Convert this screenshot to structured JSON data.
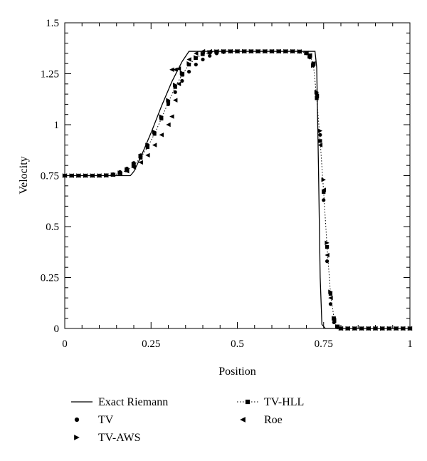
{
  "chart_data": {
    "type": "line",
    "xlabel": "Position",
    "ylabel": "Velocity",
    "xlim": [
      0,
      1
    ],
    "ylim": [
      0,
      1.5
    ],
    "x_ticks": [
      {
        "value": 0,
        "label": "0"
      },
      {
        "value": 0.25,
        "label": "0.25"
      },
      {
        "value": 0.5,
        "label": "0.5"
      },
      {
        "value": 0.75,
        "label": "0.75"
      },
      {
        "value": 1,
        "label": "1"
      }
    ],
    "y_ticks": [
      {
        "value": 0,
        "label": "0"
      },
      {
        "value": 0.25,
        "label": "0.25"
      },
      {
        "value": 0.5,
        "label": "0.5"
      },
      {
        "value": 0.75,
        "label": "0.75"
      },
      {
        "value": 1,
        "label": "1"
      },
      {
        "value": 1.25,
        "label": "1.25"
      },
      {
        "value": 1.5,
        "label": "1.5"
      }
    ],
    "grid": false,
    "legend_position": "bottom",
    "series": [
      {
        "name": "Exact Riemann",
        "style": "solid-line",
        "color": "#000000",
        "points": [
          [
            0,
            0.75
          ],
          [
            0.19,
            0.75
          ],
          [
            0.2,
            0.77
          ],
          [
            0.22,
            0.84
          ],
          [
            0.25,
            0.96
          ],
          [
            0.28,
            1.09
          ],
          [
            0.31,
            1.21
          ],
          [
            0.34,
            1.31
          ],
          [
            0.36,
            1.36
          ],
          [
            0.725,
            1.36
          ],
          [
            0.73,
            1.28
          ],
          [
            0.735,
            0.8
          ],
          [
            0.74,
            0.25
          ],
          [
            0.745,
            0.02
          ],
          [
            0.755,
            0.0
          ],
          [
            1,
            0.0
          ]
        ]
      },
      {
        "name": "TV",
        "style": "circle",
        "color": "#000000",
        "points": [
          [
            0.0,
            0.75
          ],
          [
            0.02,
            0.75
          ],
          [
            0.04,
            0.75
          ],
          [
            0.06,
            0.75
          ],
          [
            0.08,
            0.75
          ],
          [
            0.1,
            0.75
          ],
          [
            0.12,
            0.752
          ],
          [
            0.14,
            0.757
          ],
          [
            0.16,
            0.768
          ],
          [
            0.18,
            0.785
          ],
          [
            0.2,
            0.812
          ],
          [
            0.22,
            0.85
          ],
          [
            0.24,
            0.9
          ],
          [
            0.26,
            0.96
          ],
          [
            0.28,
            1.03
          ],
          [
            0.3,
            1.1
          ],
          [
            0.32,
            1.16
          ],
          [
            0.34,
            1.215
          ],
          [
            0.36,
            1.26
          ],
          [
            0.38,
            1.295
          ],
          [
            0.4,
            1.32
          ],
          [
            0.42,
            1.338
          ],
          [
            0.44,
            1.35
          ],
          [
            0.46,
            1.356
          ],
          [
            0.48,
            1.359
          ],
          [
            0.5,
            1.36
          ],
          [
            0.52,
            1.36
          ],
          [
            0.54,
            1.36
          ],
          [
            0.56,
            1.36
          ],
          [
            0.58,
            1.36
          ],
          [
            0.6,
            1.36
          ],
          [
            0.62,
            1.36
          ],
          [
            0.64,
            1.36
          ],
          [
            0.66,
            1.36
          ],
          [
            0.68,
            1.358
          ],
          [
            0.7,
            1.35
          ],
          [
            0.71,
            1.33
          ],
          [
            0.72,
            1.29
          ],
          [
            0.73,
            1.15
          ],
          [
            0.74,
            0.95
          ],
          [
            0.75,
            0.63
          ],
          [
            0.76,
            0.33
          ],
          [
            0.77,
            0.12
          ],
          [
            0.78,
            0.03
          ],
          [
            0.79,
            0.005
          ],
          [
            0.8,
            0.0
          ],
          [
            0.82,
            0.0
          ],
          [
            0.84,
            0.0
          ],
          [
            0.86,
            0.0
          ],
          [
            0.88,
            0.0
          ],
          [
            0.9,
            0.0
          ],
          [
            0.92,
            0.0
          ],
          [
            0.94,
            0.0
          ],
          [
            0.96,
            0.0
          ],
          [
            0.98,
            0.0
          ],
          [
            1.0,
            0.0
          ]
        ]
      },
      {
        "name": "TV-HLL",
        "style": "dotted-square",
        "color": "#000000",
        "points": [
          [
            0.0,
            0.75
          ],
          [
            0.02,
            0.75
          ],
          [
            0.04,
            0.75
          ],
          [
            0.06,
            0.75
          ],
          [
            0.08,
            0.75
          ],
          [
            0.1,
            0.75
          ],
          [
            0.12,
            0.751
          ],
          [
            0.14,
            0.754
          ],
          [
            0.16,
            0.762
          ],
          [
            0.18,
            0.776
          ],
          [
            0.2,
            0.8
          ],
          [
            0.22,
            0.838
          ],
          [
            0.24,
            0.89
          ],
          [
            0.26,
            0.955
          ],
          [
            0.28,
            1.03
          ],
          [
            0.3,
            1.11
          ],
          [
            0.32,
            1.185
          ],
          [
            0.34,
            1.245
          ],
          [
            0.36,
            1.295
          ],
          [
            0.38,
            1.327
          ],
          [
            0.4,
            1.346
          ],
          [
            0.42,
            1.355
          ],
          [
            0.44,
            1.359
          ],
          [
            0.46,
            1.36
          ],
          [
            0.48,
            1.36
          ],
          [
            0.5,
            1.36
          ],
          [
            0.52,
            1.36
          ],
          [
            0.54,
            1.36
          ],
          [
            0.56,
            1.36
          ],
          [
            0.58,
            1.36
          ],
          [
            0.6,
            1.36
          ],
          [
            0.62,
            1.36
          ],
          [
            0.64,
            1.36
          ],
          [
            0.66,
            1.36
          ],
          [
            0.68,
            1.359
          ],
          [
            0.7,
            1.353
          ],
          [
            0.71,
            1.34
          ],
          [
            0.72,
            1.3
          ],
          [
            0.73,
            1.13
          ],
          [
            0.74,
            0.92
          ],
          [
            0.75,
            0.67
          ],
          [
            0.76,
            0.4
          ],
          [
            0.77,
            0.17
          ],
          [
            0.78,
            0.05
          ],
          [
            0.79,
            0.01
          ],
          [
            0.8,
            0.0
          ],
          [
            0.82,
            0.0
          ],
          [
            0.84,
            0.0
          ],
          [
            0.86,
            0.0
          ],
          [
            0.88,
            0.0
          ],
          [
            0.9,
            0.0
          ],
          [
            0.92,
            0.0
          ],
          [
            0.94,
            0.0
          ],
          [
            0.96,
            0.0
          ],
          [
            0.98,
            0.0
          ],
          [
            1.0,
            0.0
          ]
        ]
      },
      {
        "name": "TV-AWS",
        "style": "triangle-right",
        "color": "#000000",
        "points": [
          [
            0.0,
            0.75
          ],
          [
            0.02,
            0.75
          ],
          [
            0.04,
            0.75
          ],
          [
            0.06,
            0.75
          ],
          [
            0.08,
            0.75
          ],
          [
            0.1,
            0.75
          ],
          [
            0.12,
            0.751
          ],
          [
            0.14,
            0.755
          ],
          [
            0.16,
            0.764
          ],
          [
            0.18,
            0.78
          ],
          [
            0.2,
            0.807
          ],
          [
            0.22,
            0.846
          ],
          [
            0.24,
            0.9
          ],
          [
            0.26,
            0.965
          ],
          [
            0.28,
            1.04
          ],
          [
            0.3,
            1.12
          ],
          [
            0.32,
            1.195
          ],
          [
            0.34,
            1.255
          ],
          [
            0.36,
            1.3
          ],
          [
            0.38,
            1.33
          ],
          [
            0.4,
            1.348
          ],
          [
            0.42,
            1.356
          ],
          [
            0.44,
            1.359
          ],
          [
            0.46,
            1.36
          ],
          [
            0.48,
            1.36
          ],
          [
            0.5,
            1.36
          ],
          [
            0.52,
            1.36
          ],
          [
            0.54,
            1.36
          ],
          [
            0.56,
            1.36
          ],
          [
            0.58,
            1.36
          ],
          [
            0.6,
            1.36
          ],
          [
            0.62,
            1.36
          ],
          [
            0.64,
            1.36
          ],
          [
            0.66,
            1.36
          ],
          [
            0.68,
            1.359
          ],
          [
            0.7,
            1.352
          ],
          [
            0.71,
            1.335
          ],
          [
            0.72,
            1.29
          ],
          [
            0.73,
            1.16
          ],
          [
            0.74,
            0.97
          ],
          [
            0.75,
            0.73
          ],
          [
            0.76,
            0.42
          ],
          [
            0.77,
            0.18
          ],
          [
            0.78,
            0.05
          ],
          [
            0.79,
            0.01
          ],
          [
            0.8,
            0.0
          ],
          [
            0.82,
            0.0
          ],
          [
            0.84,
            0.0
          ],
          [
            0.86,
            0.0
          ],
          [
            0.88,
            0.0
          ],
          [
            0.9,
            0.0
          ],
          [
            0.92,
            0.0
          ],
          [
            0.94,
            0.0
          ],
          [
            0.96,
            0.0
          ],
          [
            0.98,
            0.0
          ],
          [
            1.0,
            0.0
          ]
        ]
      },
      {
        "name": "Roe",
        "style": "triangle-left",
        "color": "#000000",
        "points": [
          [
            0.0,
            0.75
          ],
          [
            0.02,
            0.75
          ],
          [
            0.04,
            0.75
          ],
          [
            0.06,
            0.75
          ],
          [
            0.08,
            0.75
          ],
          [
            0.1,
            0.75
          ],
          [
            0.12,
            0.751
          ],
          [
            0.14,
            0.754
          ],
          [
            0.16,
            0.76
          ],
          [
            0.18,
            0.772
          ],
          [
            0.2,
            0.79
          ],
          [
            0.22,
            0.815
          ],
          [
            0.24,
            0.85
          ],
          [
            0.26,
            0.9
          ],
          [
            0.28,
            0.95
          ],
          [
            0.3,
            1.0
          ],
          [
            0.31,
            1.04
          ],
          [
            0.32,
            1.12
          ],
          [
            0.33,
            1.2
          ],
          [
            0.34,
            1.25
          ],
          [
            0.31,
            1.27
          ],
          [
            0.32,
            1.27
          ],
          [
            0.33,
            1.275
          ],
          [
            0.36,
            1.32
          ],
          [
            0.38,
            1.35
          ],
          [
            0.4,
            1.36
          ],
          [
            0.42,
            1.36
          ],
          [
            0.44,
            1.36
          ],
          [
            0.46,
            1.36
          ],
          [
            0.48,
            1.36
          ],
          [
            0.5,
            1.36
          ],
          [
            0.52,
            1.36
          ],
          [
            0.54,
            1.36
          ],
          [
            0.56,
            1.36
          ],
          [
            0.58,
            1.36
          ],
          [
            0.6,
            1.36
          ],
          [
            0.62,
            1.36
          ],
          [
            0.64,
            1.36
          ],
          [
            0.66,
            1.36
          ],
          [
            0.68,
            1.359
          ],
          [
            0.7,
            1.352
          ],
          [
            0.71,
            1.34
          ],
          [
            0.72,
            1.3
          ],
          [
            0.73,
            1.14
          ],
          [
            0.74,
            0.9
          ],
          [
            0.75,
            0.68
          ],
          [
            0.76,
            0.36
          ],
          [
            0.77,
            0.15
          ],
          [
            0.78,
            0.04
          ],
          [
            0.79,
            0.008
          ],
          [
            0.8,
            0.0
          ],
          [
            0.82,
            0.0
          ],
          [
            0.84,
            0.0
          ],
          [
            0.86,
            0.0
          ],
          [
            0.88,
            0.0
          ],
          [
            0.9,
            0.0
          ],
          [
            0.92,
            0.0
          ],
          [
            0.94,
            0.0
          ],
          [
            0.96,
            0.0
          ],
          [
            0.98,
            0.0
          ],
          [
            1.0,
            0.0
          ]
        ]
      }
    ]
  }
}
